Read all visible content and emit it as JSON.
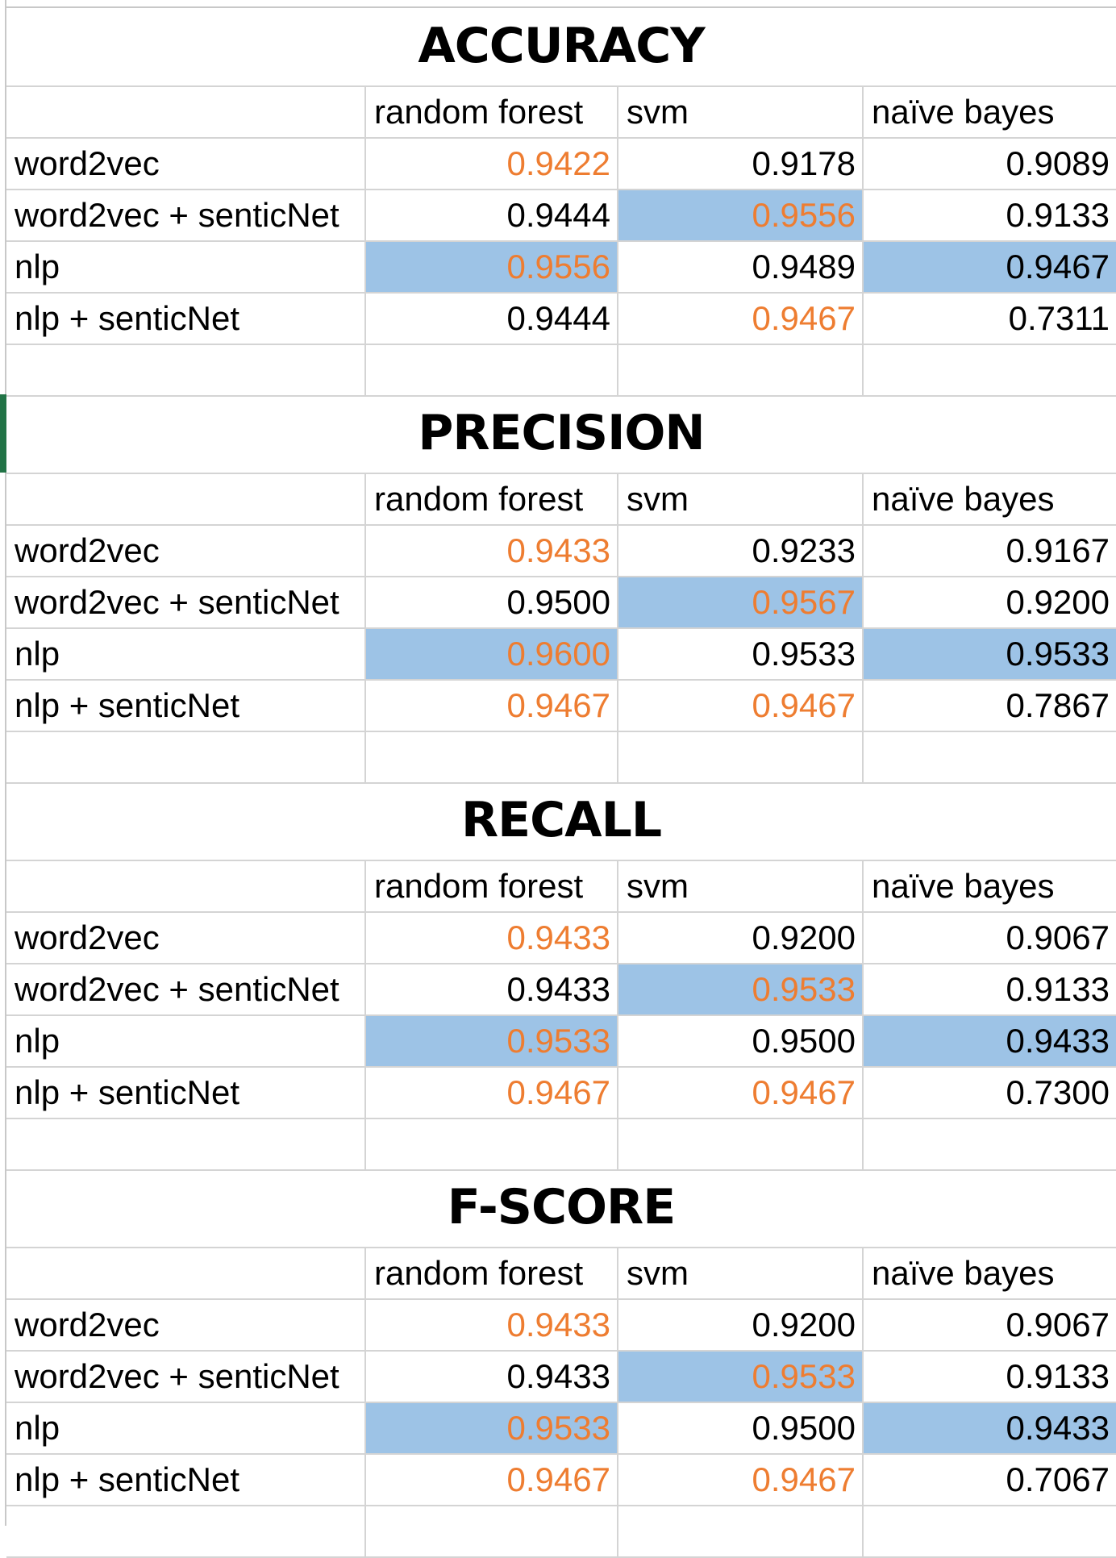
{
  "spreadsheet": {
    "columns": [
      "random forest",
      "svm",
      "naïve bayes"
    ],
    "colors": {
      "highlight_text": "#ee7d31",
      "highlight_fill": "#9dc3e6",
      "grid": "#d4d4d4",
      "selection_accent": "#217346"
    },
    "tables": [
      {
        "title": "ACCURACY",
        "rows": [
          {
            "label": "word2vec",
            "values": [
              "0.9422",
              "0.9178",
              "0.9089"
            ],
            "orange": [
              true,
              false,
              false
            ],
            "fill": [
              false,
              false,
              false
            ]
          },
          {
            "label": "word2vec + senticNet",
            "values": [
              "0.9444",
              "0.9556",
              "0.9133"
            ],
            "orange": [
              false,
              true,
              false
            ],
            "fill": [
              false,
              true,
              false
            ]
          },
          {
            "label": "nlp",
            "values": [
              "0.9556",
              "0.9489",
              "0.9467"
            ],
            "orange": [
              true,
              false,
              false
            ],
            "fill": [
              true,
              false,
              true
            ]
          },
          {
            "label": "nlp + senticNet",
            "values": [
              "0.9444",
              "0.9467",
              "0.7311"
            ],
            "orange": [
              false,
              true,
              false
            ],
            "fill": [
              false,
              false,
              false
            ]
          }
        ]
      },
      {
        "title": "PRECISION",
        "rows": [
          {
            "label": "word2vec",
            "values": [
              "0.9433",
              "0.9233",
              "0.9167"
            ],
            "orange": [
              true,
              false,
              false
            ],
            "fill": [
              false,
              false,
              false
            ]
          },
          {
            "label": "word2vec + senticNet",
            "values": [
              "0.9500",
              "0.9567",
              "0.9200"
            ],
            "orange": [
              false,
              true,
              false
            ],
            "fill": [
              false,
              true,
              false
            ]
          },
          {
            "label": "nlp",
            "values": [
              "0.9600",
              "0.9533",
              "0.9533"
            ],
            "orange": [
              true,
              false,
              false
            ],
            "fill": [
              true,
              false,
              true
            ]
          },
          {
            "label": "nlp + senticNet",
            "values": [
              "0.9467",
              "0.9467",
              "0.7867"
            ],
            "orange": [
              true,
              true,
              false
            ],
            "fill": [
              false,
              false,
              false
            ]
          }
        ]
      },
      {
        "title": "RECALL",
        "rows": [
          {
            "label": "word2vec",
            "values": [
              "0.9433",
              "0.9200",
              "0.9067"
            ],
            "orange": [
              true,
              false,
              false
            ],
            "fill": [
              false,
              false,
              false
            ]
          },
          {
            "label": "word2vec + senticNet",
            "values": [
              "0.9433",
              "0.9533",
              "0.9133"
            ],
            "orange": [
              false,
              true,
              false
            ],
            "fill": [
              false,
              true,
              false
            ]
          },
          {
            "label": "nlp",
            "values": [
              "0.9533",
              "0.9500",
              "0.9433"
            ],
            "orange": [
              true,
              false,
              false
            ],
            "fill": [
              true,
              false,
              true
            ]
          },
          {
            "label": "nlp + senticNet",
            "values": [
              "0.9467",
              "0.9467",
              "0.7300"
            ],
            "orange": [
              true,
              true,
              false
            ],
            "fill": [
              false,
              false,
              false
            ]
          }
        ]
      },
      {
        "title": "F-SCORE",
        "rows": [
          {
            "label": "word2vec",
            "values": [
              "0.9433",
              "0.9200",
              "0.9067"
            ],
            "orange": [
              true,
              false,
              false
            ],
            "fill": [
              false,
              false,
              false
            ]
          },
          {
            "label": "word2vec + senticNet",
            "values": [
              "0.9433",
              "0.9533",
              "0.9133"
            ],
            "orange": [
              false,
              true,
              false
            ],
            "fill": [
              false,
              true,
              false
            ]
          },
          {
            "label": "nlp",
            "values": [
              "0.9533",
              "0.9500",
              "0.9433"
            ],
            "orange": [
              true,
              false,
              false
            ],
            "fill": [
              true,
              false,
              true
            ]
          },
          {
            "label": "nlp + senticNet",
            "values": [
              "0.9467",
              "0.9467",
              "0.7067"
            ],
            "orange": [
              true,
              true,
              false
            ],
            "fill": [
              false,
              false,
              false
            ]
          }
        ]
      }
    ]
  }
}
